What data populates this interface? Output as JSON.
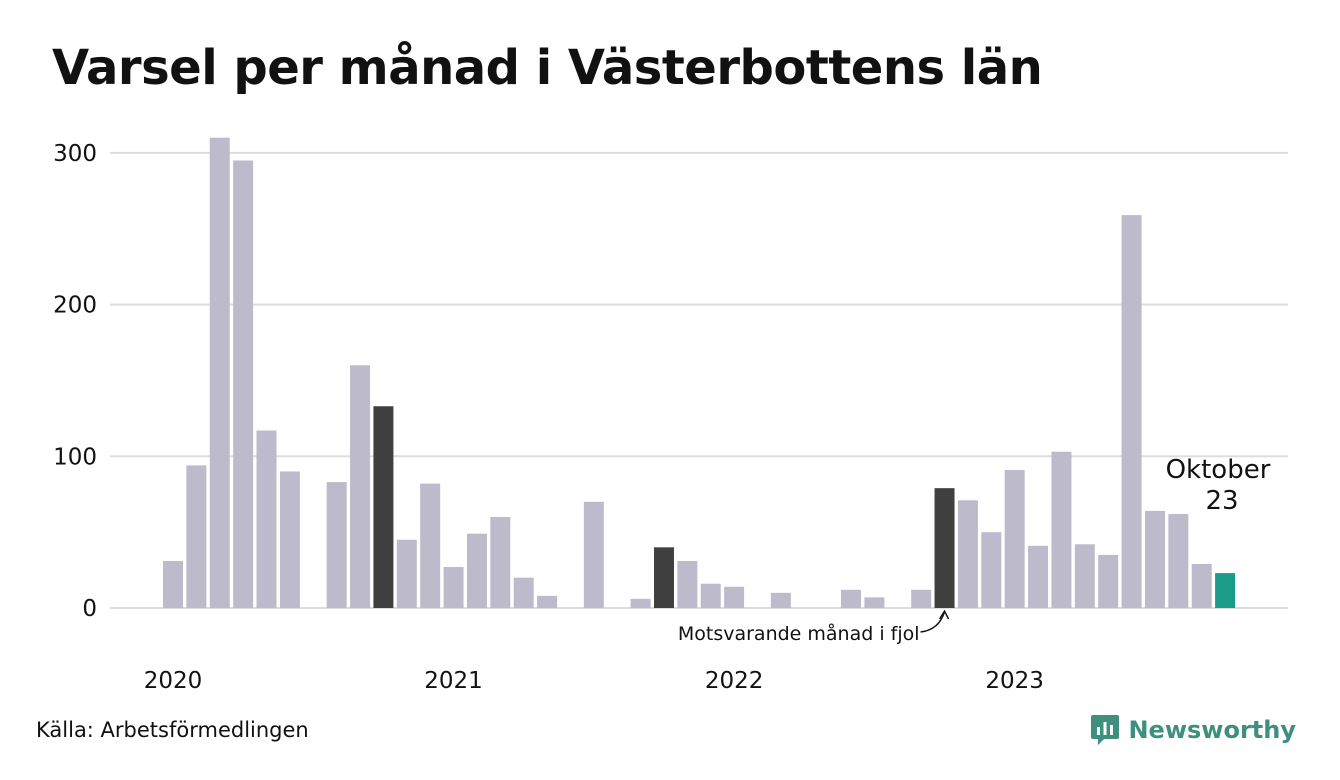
{
  "title": "Varsel per månad i Västerbottens län",
  "source": "Källa: Arbetsförmedlingen",
  "brand": {
    "name": "Newsworthy",
    "icon": "newsworthy-logo-icon"
  },
  "colors": {
    "default_bar": "#bdbbcb",
    "comparison_bar": "#404040",
    "highlight_bar": "#1c9a8a",
    "grid": "#dddddd",
    "brand": "#3f8f7e"
  },
  "chart_data": {
    "type": "bar",
    "title": "Varsel per månad i Västerbottens län",
    "xlabel": "",
    "ylabel": "",
    "ylim": [
      0,
      310
    ],
    "yticks": [
      0,
      100,
      200,
      300
    ],
    "grid": true,
    "x_labels": [
      {
        "label": "2020",
        "index": 0
      },
      {
        "label": "2021",
        "index": 12
      },
      {
        "label": "2022",
        "index": 24
      },
      {
        "label": "2023",
        "index": 36
      }
    ],
    "categories": [
      "2020-01",
      "2020-02",
      "2020-03",
      "2020-04",
      "2020-05",
      "2020-06",
      "2020-07",
      "2020-08",
      "2020-09",
      "2020-10",
      "2020-11",
      "2020-12",
      "2021-01",
      "2021-02",
      "2021-03",
      "2021-04",
      "2021-05",
      "2021-06",
      "2021-07",
      "2021-08",
      "2021-09",
      "2021-10",
      "2021-11",
      "2021-12",
      "2022-01",
      "2022-02",
      "2022-03",
      "2022-04",
      "2022-05",
      "2022-06",
      "2022-07",
      "2022-08",
      "2022-09",
      "2022-10",
      "2022-11",
      "2022-12",
      "2023-01",
      "2023-02",
      "2023-03",
      "2023-04",
      "2023-05",
      "2023-06",
      "2023-07",
      "2023-08",
      "2023-09",
      "2023-10"
    ],
    "values": [
      31,
      94,
      310,
      295,
      117,
      90,
      0,
      83,
      160,
      133,
      45,
      82,
      27,
      49,
      60,
      20,
      8,
      0,
      70,
      0,
      6,
      40,
      31,
      16,
      14,
      0,
      10,
      0,
      0,
      12,
      7,
      0,
      12,
      79,
      71,
      50,
      91,
      41,
      103,
      42,
      35,
      259,
      64,
      62,
      29,
      23
    ],
    "comparison_indices": [
      9,
      21,
      33
    ],
    "highlight_index": 45,
    "highlight_label": {
      "line1": "Oktober",
      "line2": "23"
    },
    "annotation": {
      "text": "Motsvarande månad i fjol",
      "index": 33
    }
  }
}
